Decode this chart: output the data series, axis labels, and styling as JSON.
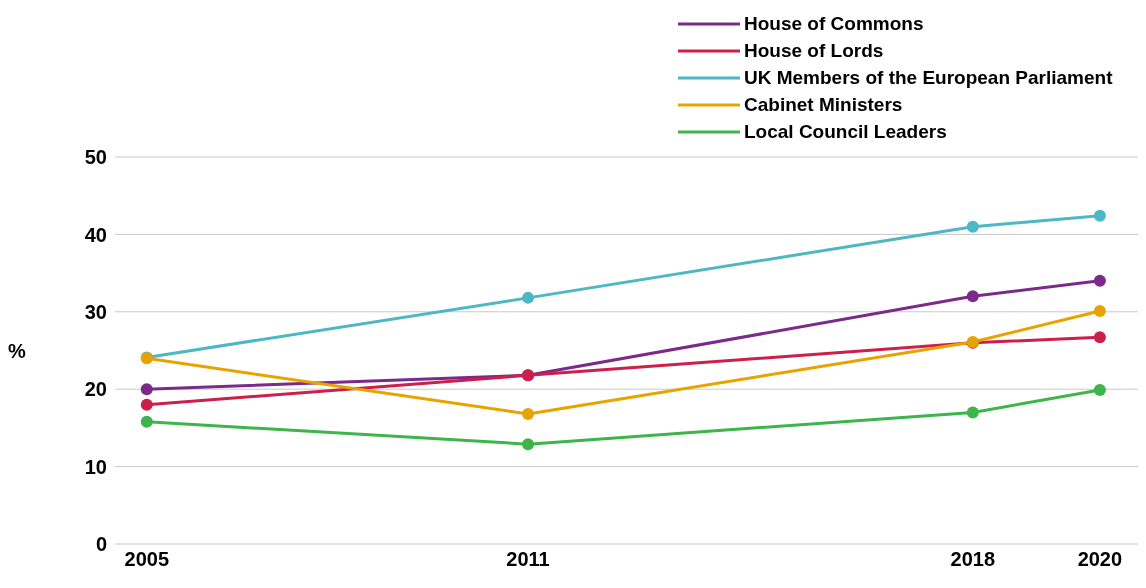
{
  "chart_data": {
    "type": "line",
    "ylabel": "%",
    "x": [
      2005,
      2011,
      2018,
      2020
    ],
    "xlim": [
      2004.5,
      2020.6
    ],
    "xticks": [
      2005,
      2011,
      2018,
      2020
    ],
    "ylim": [
      0,
      50
    ],
    "yticks": [
      0,
      10,
      20,
      30,
      40,
      50
    ],
    "grid": "y",
    "legend": "top right",
    "marker": "circle",
    "line_style": "solid",
    "series": [
      {
        "name": "House of Commons",
        "color": "#7b2a8a",
        "values": [
          20,
          21.8,
          32,
          34
        ]
      },
      {
        "name": "House of Lords",
        "color": "#cc1f4a",
        "values": [
          18,
          21.8,
          26,
          26.7
        ]
      },
      {
        "name": "UK Members of the European Parliament",
        "color": "#4db8c4",
        "values": [
          24.1,
          31.8,
          41,
          42.4
        ]
      },
      {
        "name": "Cabinet Ministers",
        "color": "#e8a300",
        "values": [
          24,
          16.8,
          26.1,
          30.1
        ]
      },
      {
        "name": "Local Council Leaders",
        "color": "#3db54a",
        "values": [
          15.8,
          12.9,
          17,
          19.9
        ]
      }
    ]
  }
}
